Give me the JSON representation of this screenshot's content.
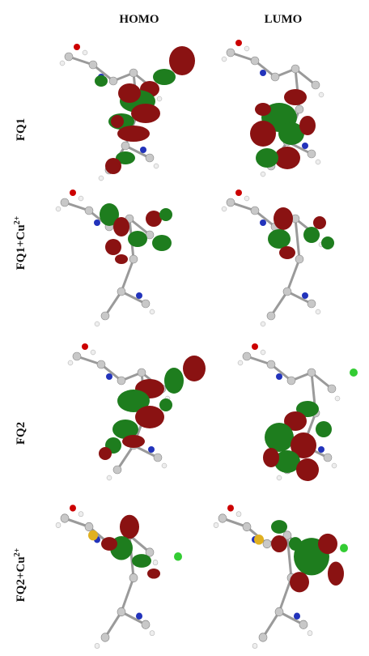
{
  "header": {
    "columns": [
      "HOMO",
      "LUMO"
    ]
  },
  "rows": [
    {
      "label": "FQ1"
    },
    {
      "label": "FQ1+Cu",
      "sup": "2+"
    },
    {
      "label": "FQ2"
    },
    {
      "label": "FQ2+Cu",
      "sup": "2+"
    }
  ]
}
